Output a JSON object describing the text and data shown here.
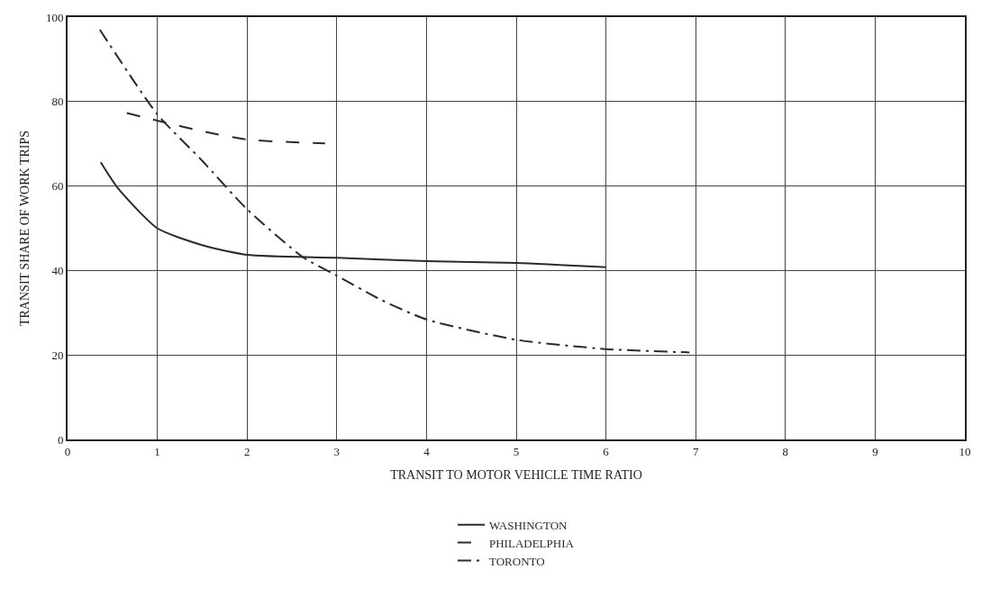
{
  "chart_data": {
    "type": "line",
    "xlabel": "TRANSIT TO MOTOR VEHICLE TIME RATIO",
    "ylabel": "TRANSIT SHARE OF WORK TRIPS",
    "xlim": [
      0,
      10
    ],
    "xticks": [
      0,
      1,
      2,
      3,
      4,
      5,
      6,
      7,
      8,
      9,
      10
    ],
    "ylim": [
      0,
      100
    ],
    "yticks": [
      0,
      20,
      40,
      60,
      80,
      100
    ],
    "grid": true,
    "legend": "bottom",
    "marker": "none",
    "series": [
      {
        "name": "WASHINGTON",
        "color": "#2b2b2b",
        "line_style": "solid",
        "x": [
          0.37,
          0.56,
          1,
          1.5,
          2,
          3,
          4,
          5,
          6
        ],
        "values": [
          65.6,
          59.5,
          50,
          46,
          43.7,
          43,
          42.2,
          41.8,
          40.8
        ]
      },
      {
        "name": "PHILADELPHIA",
        "color": "#2b2b2b",
        "line_style": "dashed",
        "x": [
          0.66,
          1,
          1.5,
          2,
          2.87
        ],
        "values": [
          77.3,
          75.5,
          73,
          71,
          70.1
        ]
      },
      {
        "name": "TORONTO",
        "color": "#2b2b2b",
        "line_style": "dashdot",
        "x": [
          0.36,
          1,
          1.5,
          2,
          2.62,
          3,
          3.5,
          4,
          5,
          6,
          6.93
        ],
        "values": [
          97,
          77,
          66,
          54.5,
          43.2,
          38.8,
          33,
          28.4,
          23.6,
          21.4,
          20.6
        ]
      }
    ]
  }
}
